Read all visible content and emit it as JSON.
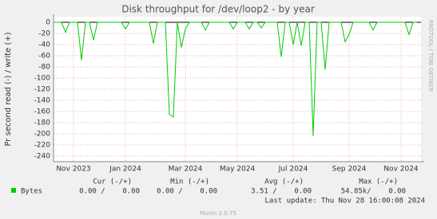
{
  "chart_data": {
    "type": "line",
    "title": "Disk throughput for /dev/loop2 - by year",
    "y_label": "Pr second read (-) / write (+)",
    "side_label": "RRDTOOL / TOBI OETIKER",
    "categories": [
      null,
      null,
      null,
      null,
      null,
      "Nov 2023",
      null,
      null,
      null,
      null,
      null,
      null,
      null,
      null,
      null,
      null,
      null,
      null,
      "Jan 2024",
      null,
      null,
      null,
      null,
      null,
      null,
      null,
      null,
      null,
      null,
      null,
      null,
      null,
      null,
      "Mar 2024",
      null,
      null,
      null,
      null,
      null,
      null,
      null,
      null,
      null,
      null,
      null,
      null,
      "May 2024",
      null,
      null,
      null,
      null,
      null,
      null,
      null,
      null,
      null,
      null,
      null,
      null,
      null,
      "Jul 2024",
      null,
      null,
      null,
      null,
      null,
      null,
      null,
      null,
      null,
      null,
      null,
      null,
      null,
      "Sep 2024",
      null,
      null,
      null,
      null,
      null,
      null,
      null,
      null,
      null,
      null,
      null,
      null,
      "Nov 2024",
      null,
      null,
      null,
      null
    ],
    "series": [
      {
        "name": "Bytes",
        "color": "#00cc00",
        "values": [
          0,
          0,
          0,
          -18,
          0,
          0,
          0,
          -68,
          0,
          0,
          -32,
          0,
          0,
          0,
          0,
          0,
          0,
          0,
          -12,
          0,
          0,
          0,
          0,
          0,
          0,
          -38,
          0,
          0,
          0,
          -165,
          -170,
          0,
          -45,
          -12,
          0,
          0,
          0,
          0,
          -14,
          0,
          0,
          0,
          0,
          0,
          0,
          -12,
          0,
          0,
          0,
          -12,
          0,
          0,
          -10,
          0,
          0,
          0,
          0,
          -62,
          0,
          0,
          -40,
          0,
          -42,
          0,
          0,
          -204,
          0,
          0,
          -85,
          0,
          0,
          0,
          0,
          -35,
          -22,
          0,
          0,
          0,
          0,
          0,
          -14,
          0,
          0,
          0,
          0,
          0,
          0,
          0,
          0,
          -22,
          0,
          0
        ]
      }
    ],
    "ylim": [
      -250,
      10
    ],
    "yticks": [
      0,
      -20,
      -40,
      -60,
      -80,
      -100,
      -120,
      -140,
      -160,
      -180,
      -200,
      -220,
      -240
    ],
    "grid": true,
    "stats": {
      "headers": [
        "Cur (-/+)",
        "Min (-/+)",
        "Avg (-/+)",
        "Max (-/+)"
      ],
      "row": [
        "0.00 /    0.00",
        "0.00 /    0.00",
        "3.51 /    0.00",
        "54.85k/    0.00"
      ]
    },
    "last_update": "Last update: Thu Nov 28 16:00:08 2024",
    "footer": "Munin 2.0.75"
  }
}
